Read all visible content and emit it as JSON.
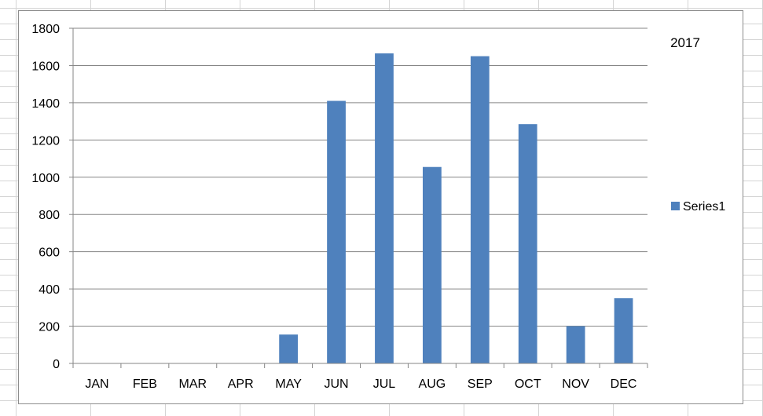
{
  "chart_data": {
    "type": "bar",
    "title": "2017",
    "categories": [
      "JAN",
      "FEB",
      "MAR",
      "APR",
      "MAY",
      "JUN",
      "JUL",
      "AUG",
      "SEP",
      "OCT",
      "NOV",
      "DEC"
    ],
    "series": [
      {
        "name": "Series1",
        "color": "#4f81bd",
        "values": [
          0,
          0,
          0,
          0,
          155,
          1410,
          1665,
          1055,
          1650,
          1285,
          200,
          350
        ]
      }
    ],
    "ylim": [
      0,
      1800
    ],
    "yticks": [
      "0",
      "200",
      "400",
      "600",
      "800",
      "1000",
      "1200",
      "1400",
      "1600",
      "1800"
    ],
    "xlabel": "",
    "ylabel": "",
    "grid": true,
    "legend_position": "right"
  }
}
